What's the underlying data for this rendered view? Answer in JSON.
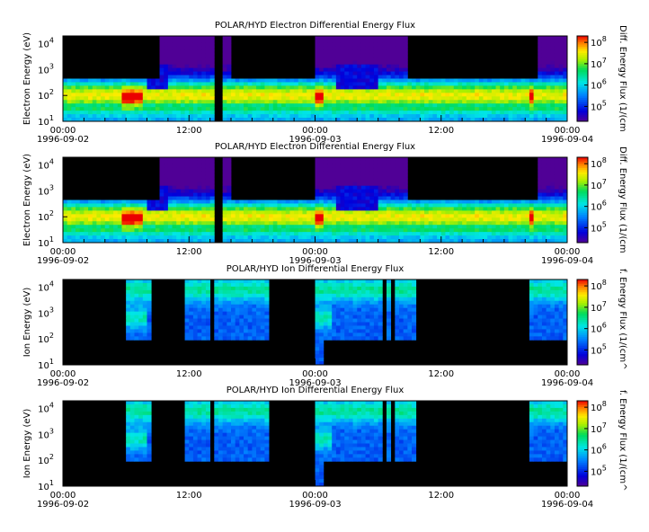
{
  "chart_data": [
    {
      "type": "heatmap",
      "title": "POLAR/HYD  Electron Differential Energy Flux",
      "ylabel": "Electron Energy (eV)",
      "yscale": "log",
      "ylim": [
        10,
        20000
      ],
      "y_ticks": [
        "10",
        "10",
        "10",
        "10"
      ],
      "y_tick_exps": [
        "1",
        "2",
        "3",
        "4"
      ],
      "x_range": [
        "1996-09-02 00:00",
        "1996-09-04 00:00"
      ],
      "x_ticks": [
        {
          "time": "00:00",
          "date": "1996-09-02"
        },
        {
          "time": "12:00",
          "date": ""
        },
        {
          "time": "00:00",
          "date": "1996-09-03"
        },
        {
          "time": "12:00",
          "date": ""
        },
        {
          "time": "00:00",
          "date": "1996-09-04"
        }
      ],
      "colorbar": {
        "label": "Diff. Energy Flux (1/(cm",
        "scale": "log",
        "range": [
          20000,
          200000000
        ],
        "ticks": [
          "10",
          "10",
          "10",
          "10"
        ],
        "tick_exps": [
          "5",
          "6",
          "7",
          "8"
        ]
      },
      "features": [
        {
          "start_hour": 0.0,
          "end_hour": 48.0,
          "kind": "background plasma sheet band 100-400 eV"
        },
        {
          "start_hour": 5.5,
          "end_hour": 7.5,
          "kind": "intensification near 100 eV"
        },
        {
          "start_hour": 24.0,
          "end_hour": 24.8,
          "kind": "intense peak near 100 eV"
        },
        {
          "start_hour": 44.5,
          "end_hour": 44.9,
          "kind": "intensification near 100 eV"
        }
      ]
    },
    {
      "type": "heatmap",
      "title": "POLAR/HYD  Electron Differential Energy Flux",
      "ylabel": "Electron Energy (eV)",
      "yscale": "log",
      "ylim": [
        10,
        20000
      ],
      "y_ticks": [
        "10",
        "10",
        "10",
        "10"
      ],
      "y_tick_exps": [
        "1",
        "2",
        "3",
        "4"
      ],
      "x_range": [
        "1996-09-02 00:00",
        "1996-09-04 00:00"
      ],
      "x_ticks": [
        {
          "time": "00:00",
          "date": "1996-09-02"
        },
        {
          "time": "12:00",
          "date": ""
        },
        {
          "time": "00:00",
          "date": "1996-09-03"
        },
        {
          "time": "12:00",
          "date": ""
        },
        {
          "time": "00:00",
          "date": "1996-09-04"
        }
      ],
      "colorbar": {
        "label": "Diff. Energy Flux (1/(cm",
        "scale": "log",
        "range": [
          20000,
          200000000
        ],
        "ticks": [
          "10",
          "10",
          "10",
          "10"
        ],
        "tick_exps": [
          "5",
          "6",
          "7",
          "8"
        ]
      }
    },
    {
      "type": "heatmap",
      "title": "POLAR/HYD  Ion Differential Energy Flux",
      "ylabel": "Ion Energy (eV)",
      "yscale": "log",
      "ylim": [
        10,
        20000
      ],
      "y_ticks": [
        "10",
        "10",
        "10",
        "10"
      ],
      "y_tick_exps": [
        "1",
        "2",
        "3",
        "4"
      ],
      "x_range": [
        "1996-09-02 00:00",
        "1996-09-04 00:00"
      ],
      "x_ticks": [
        {
          "time": "00:00",
          "date": "1996-09-02"
        },
        {
          "time": "12:00",
          "date": ""
        },
        {
          "time": "00:00",
          "date": "1996-09-03"
        },
        {
          "time": "12:00",
          "date": ""
        },
        {
          "time": "00:00",
          "date": "1996-09-04"
        }
      ],
      "colorbar": {
        "label": "f. Energy Flux (1/(cm^",
        "scale": "log",
        "range": [
          20000,
          200000000
        ],
        "ticks": [
          "10",
          "10",
          "10",
          "10"
        ],
        "tick_exps": [
          "5",
          "6",
          "7",
          "8"
        ]
      }
    },
    {
      "type": "heatmap",
      "title": "POLAR/HYD  Ion Differential Energy Flux",
      "ylabel": "Ion Energy (eV)",
      "yscale": "log",
      "ylim": [
        10,
        20000
      ],
      "y_ticks": [
        "10",
        "10",
        "10",
        "10"
      ],
      "y_tick_exps": [
        "1",
        "2",
        "3",
        "4"
      ],
      "x_range": [
        "1996-09-02 00:00",
        "1996-09-04 00:00"
      ],
      "x_ticks": [
        {
          "time": "00:00",
          "date": "1996-09-02"
        },
        {
          "time": "12:00",
          "date": ""
        },
        {
          "time": "00:00",
          "date": "1996-09-03"
        },
        {
          "time": "12:00",
          "date": ""
        },
        {
          "time": "00:00",
          "date": "1996-09-04"
        }
      ],
      "colorbar": {
        "label": "f. Energy Flux (1/(cm^",
        "scale": "log",
        "range": [
          20000,
          200000000
        ],
        "ticks": [
          "10",
          "10",
          "10",
          "10"
        ],
        "tick_exps": [
          "5",
          "6",
          "7",
          "8"
        ]
      }
    }
  ]
}
